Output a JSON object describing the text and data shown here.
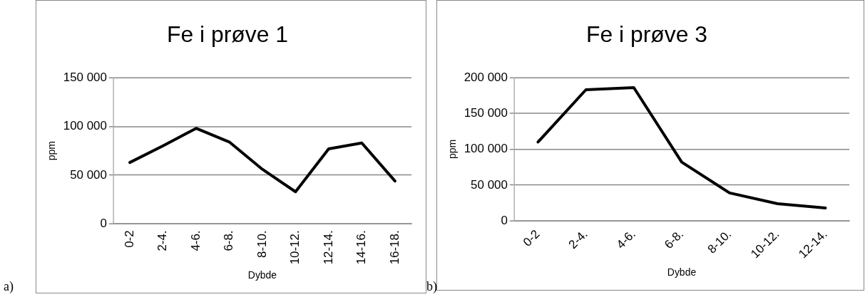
{
  "chart_data": [
    {
      "type": "line",
      "title": "Fe i prøve 1",
      "xlabel": "Dybde",
      "ylabel": "ppm",
      "categories": [
        "0-2",
        "2-4.",
        "4-6.",
        "6-8.",
        "8-10.",
        "10-12.",
        "12-14.",
        "14-16.",
        "16-18."
      ],
      "series": [
        {
          "color": "#000000",
          "values": [
            63000,
            80000,
            98000,
            84000,
            56000,
            33000,
            77000,
            83000,
            44000
          ]
        }
      ],
      "ylim": [
        0,
        150000
      ],
      "yticks": [
        {
          "value": 0,
          "label": "0"
        },
        {
          "value": 50000,
          "label": "50 000"
        },
        {
          "value": 100000,
          "label": "100 000"
        },
        {
          "value": 150000,
          "label": "150 000"
        }
      ],
      "grid": "y",
      "legend": false,
      "marker": "none",
      "line_style": "solid",
      "annotations": [
        "a)"
      ]
    },
    {
      "type": "line",
      "title": "Fe i prøve 3",
      "xlabel": "Dybde",
      "ylabel": "ppm",
      "categories": [
        "0-2",
        "2-4.",
        "4-6.",
        "6-8.",
        "8-10.",
        "10-12.",
        "12-14."
      ],
      "series": [
        {
          "color": "#000000",
          "values": [
            110000,
            183000,
            186000,
            82000,
            39000,
            24000,
            18000
          ]
        }
      ],
      "ylim": [
        0,
        200000
      ],
      "yticks": [
        {
          "value": 0,
          "label": "0"
        },
        {
          "value": 50000,
          "label": "50 000"
        },
        {
          "value": 100000,
          "label": "100 000"
        },
        {
          "value": 150000,
          "label": "150 000"
        },
        {
          "value": 200000,
          "label": "200 000"
        }
      ],
      "grid": "y",
      "legend": false,
      "marker": "none",
      "line_style": "solid",
      "annotations": [
        "b)"
      ]
    }
  ]
}
